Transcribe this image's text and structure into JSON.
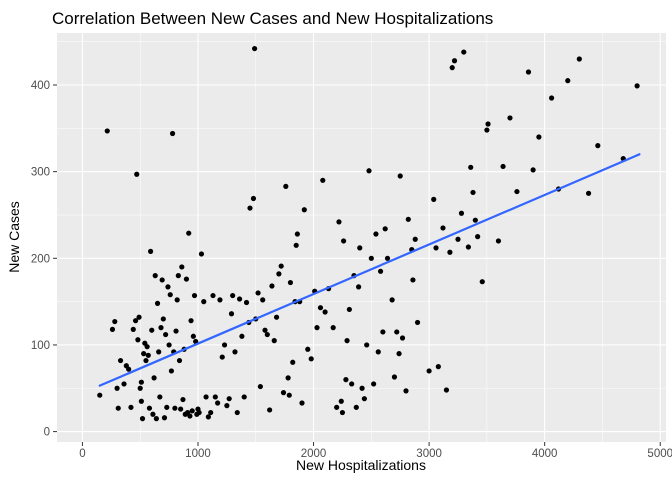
{
  "chart_data": {
    "type": "scatter",
    "title": "Correlation Between New Cases and New Hospitalizations",
    "xlabel": "New Hospitalizations",
    "ylabel": "New Cases",
    "xlim": [
      -220,
      5050
    ],
    "ylim": [
      -12,
      460
    ],
    "x_ticks": [
      0,
      1000,
      2000,
      3000,
      4000,
      5000
    ],
    "y_ticks": [
      0,
      100,
      200,
      300,
      400
    ],
    "x_tick_labels": [
      "0",
      "1000",
      "2000",
      "3000",
      "4000",
      "5000"
    ],
    "y_tick_labels": [
      "0",
      "100",
      "200",
      "300",
      "400"
    ],
    "grid": true,
    "legend": "none",
    "colors": {
      "panel_background": "#ebebeb",
      "grid_major": "#ffffff",
      "point": "#000000",
      "trend_line": "#3366ff",
      "tick_label": "#4d4d4d",
      "tick_mark": "#333333"
    },
    "trend_line": {
      "x": [
        150,
        4820
      ],
      "y": [
        53,
        320
      ]
    },
    "points": [
      [
        150,
        42
      ],
      [
        215,
        347
      ],
      [
        260,
        118
      ],
      [
        280,
        127
      ],
      [
        300,
        50
      ],
      [
        310,
        27
      ],
      [
        330,
        82
      ],
      [
        360,
        55
      ],
      [
        380,
        76
      ],
      [
        400,
        72
      ],
      [
        420,
        28
      ],
      [
        440,
        118
      ],
      [
        460,
        128
      ],
      [
        470,
        297
      ],
      [
        480,
        106
      ],
      [
        490,
        132
      ],
      [
        500,
        50
      ],
      [
        510,
        35
      ],
      [
        510,
        57
      ],
      [
        520,
        15
      ],
      [
        530,
        90
      ],
      [
        540,
        102
      ],
      [
        550,
        82
      ],
      [
        560,
        98
      ],
      [
        570,
        88
      ],
      [
        580,
        27
      ],
      [
        590,
        208
      ],
      [
        600,
        117
      ],
      [
        610,
        20
      ],
      [
        620,
        62
      ],
      [
        630,
        180
      ],
      [
        640,
        15
      ],
      [
        650,
        148
      ],
      [
        660,
        92
      ],
      [
        670,
        40
      ],
      [
        680,
        120
      ],
      [
        690,
        175
      ],
      [
        700,
        130
      ],
      [
        710,
        16
      ],
      [
        720,
        112
      ],
      [
        730,
        28
      ],
      [
        740,
        167
      ],
      [
        750,
        100
      ],
      [
        760,
        158
      ],
      [
        770,
        70
      ],
      [
        780,
        344
      ],
      [
        790,
        92
      ],
      [
        800,
        27
      ],
      [
        810,
        116
      ],
      [
        820,
        152
      ],
      [
        830,
        180
      ],
      [
        840,
        82
      ],
      [
        850,
        26
      ],
      [
        860,
        190
      ],
      [
        870,
        37
      ],
      [
        880,
        95
      ],
      [
        890,
        20
      ],
      [
        900,
        176
      ],
      [
        910,
        22
      ],
      [
        920,
        229
      ],
      [
        930,
        18
      ],
      [
        940,
        128
      ],
      [
        950,
        24
      ],
      [
        960,
        110
      ],
      [
        970,
        157
      ],
      [
        980,
        104
      ],
      [
        990,
        20
      ],
      [
        1000,
        26
      ],
      [
        1010,
        22
      ],
      [
        1030,
        205
      ],
      [
        1050,
        150
      ],
      [
        1070,
        40
      ],
      [
        1090,
        17
      ],
      [
        1110,
        22
      ],
      [
        1130,
        157
      ],
      [
        1150,
        40
      ],
      [
        1170,
        33
      ],
      [
        1190,
        152
      ],
      [
        1210,
        86
      ],
      [
        1230,
        100
      ],
      [
        1250,
        30
      ],
      [
        1270,
        38
      ],
      [
        1290,
        136
      ],
      [
        1300,
        157
      ],
      [
        1320,
        92
      ],
      [
        1340,
        22
      ],
      [
        1360,
        153
      ],
      [
        1380,
        110
      ],
      [
        1400,
        40
      ],
      [
        1420,
        149
      ],
      [
        1440,
        126
      ],
      [
        1450,
        258
      ],
      [
        1480,
        269
      ],
      [
        1490,
        442
      ],
      [
        1500,
        130
      ],
      [
        1520,
        160
      ],
      [
        1540,
        52
      ],
      [
        1560,
        152
      ],
      [
        1580,
        117
      ],
      [
        1600,
        112
      ],
      [
        1620,
        25
      ],
      [
        1640,
        168
      ],
      [
        1660,
        105
      ],
      [
        1680,
        132
      ],
      [
        1700,
        182
      ],
      [
        1720,
        191
      ],
      [
        1740,
        45
      ],
      [
        1760,
        283
      ],
      [
        1780,
        62
      ],
      [
        1790,
        42
      ],
      [
        1800,
        172
      ],
      [
        1820,
        80
      ],
      [
        1840,
        150
      ],
      [
        1850,
        215
      ],
      [
        1860,
        228
      ],
      [
        1880,
        150
      ],
      [
        1900,
        33
      ],
      [
        1920,
        256
      ],
      [
        1950,
        95
      ],
      [
        1980,
        84
      ],
      [
        2010,
        162
      ],
      [
        2030,
        120
      ],
      [
        2060,
        143
      ],
      [
        2080,
        290
      ],
      [
        2100,
        138
      ],
      [
        2130,
        165
      ],
      [
        2170,
        120
      ],
      [
        2200,
        28
      ],
      [
        2220,
        242
      ],
      [
        2240,
        35
      ],
      [
        2250,
        22
      ],
      [
        2260,
        220
      ],
      [
        2280,
        60
      ],
      [
        2290,
        105
      ],
      [
        2310,
        141
      ],
      [
        2330,
        55
      ],
      [
        2350,
        180
      ],
      [
        2370,
        28
      ],
      [
        2390,
        167
      ],
      [
        2400,
        212
      ],
      [
        2420,
        50
      ],
      [
        2440,
        38
      ],
      [
        2460,
        100
      ],
      [
        2480,
        301
      ],
      [
        2500,
        200
      ],
      [
        2520,
        55
      ],
      [
        2540,
        228
      ],
      [
        2560,
        92
      ],
      [
        2580,
        185
      ],
      [
        2600,
        115
      ],
      [
        2620,
        234
      ],
      [
        2640,
        200
      ],
      [
        2680,
        152
      ],
      [
        2700,
        63
      ],
      [
        2720,
        115
      ],
      [
        2740,
        90
      ],
      [
        2750,
        295
      ],
      [
        2770,
        108
      ],
      [
        2800,
        47
      ],
      [
        2820,
        245
      ],
      [
        2850,
        210
      ],
      [
        2860,
        175
      ],
      [
        2880,
        222
      ],
      [
        2900,
        126
      ],
      [
        3000,
        70
      ],
      [
        3040,
        268
      ],
      [
        3060,
        212
      ],
      [
        3080,
        75
      ],
      [
        3120,
        235
      ],
      [
        3150,
        48
      ],
      [
        3180,
        207
      ],
      [
        3200,
        420
      ],
      [
        3220,
        428
      ],
      [
        3250,
        222
      ],
      [
        3280,
        252
      ],
      [
        3300,
        438
      ],
      [
        3340,
        213
      ],
      [
        3360,
        305
      ],
      [
        3380,
        276
      ],
      [
        3400,
        244
      ],
      [
        3420,
        225
      ],
      [
        3460,
        173
      ],
      [
        3500,
        348
      ],
      [
        3510,
        355
      ],
      [
        3600,
        220
      ],
      [
        3640,
        306
      ],
      [
        3700,
        362
      ],
      [
        3760,
        277
      ],
      [
        3860,
        415
      ],
      [
        3900,
        302
      ],
      [
        3950,
        340
      ],
      [
        4060,
        385
      ],
      [
        4120,
        280
      ],
      [
        4200,
        405
      ],
      [
        4300,
        430
      ],
      [
        4380,
        275
      ],
      [
        4460,
        330
      ],
      [
        4680,
        315
      ],
      [
        4800,
        399
      ]
    ]
  }
}
